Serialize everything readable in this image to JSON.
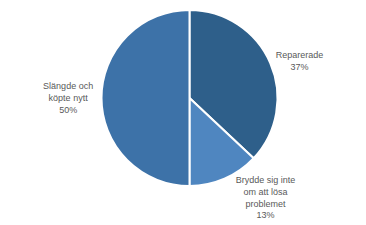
{
  "chart_data": {
    "type": "pie",
    "categories": [
      "Reparerade",
      "Brydde sig inte\nom att lösa\nproblemet",
      "Slängde och\nköpte nytt"
    ],
    "values": [
      37,
      13,
      50
    ],
    "value_labels": [
      "37%",
      "13%",
      "50%"
    ],
    "colors": [
      "#2E5F8A",
      "#4F86C0",
      "#3D72A8"
    ]
  }
}
